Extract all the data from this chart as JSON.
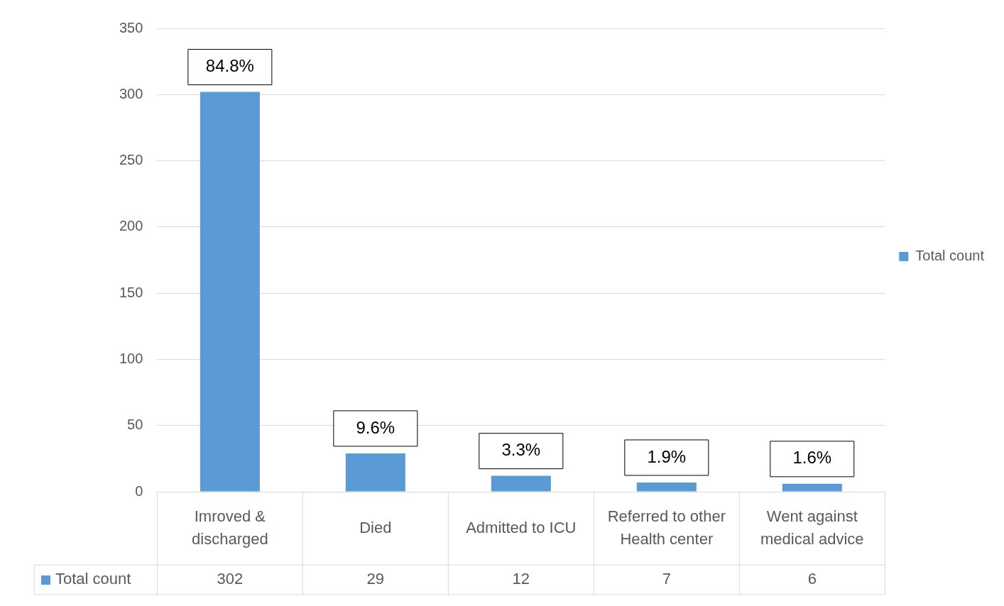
{
  "chart_data": {
    "type": "bar",
    "categories": [
      "Imroved & discharged",
      "Died",
      "Admitted to ICU",
      "Referred to other Health center",
      "Went against medical advice"
    ],
    "series": [
      {
        "name": "Total count",
        "color": "#5b9bd5",
        "values": [
          302,
          29,
          12,
          7,
          6
        ]
      }
    ],
    "value_labels": [
      "84.8%",
      "9.6%",
      "3.3%",
      "1.9%",
      "1.6%"
    ],
    "data_labels": true,
    "ylim": [
      0,
      350
    ],
    "yticks": [
      0,
      50,
      100,
      150,
      200,
      250,
      300,
      350
    ],
    "grid": "y",
    "legend": "right"
  }
}
